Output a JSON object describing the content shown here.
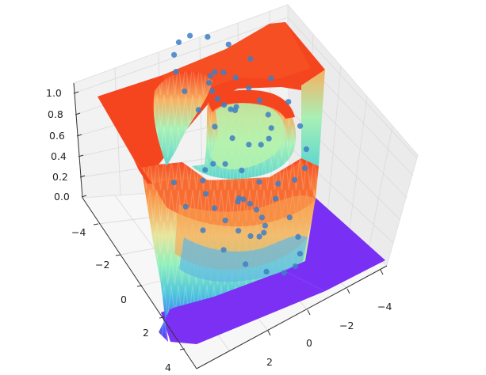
{
  "chart_data": {
    "type": "surface3d",
    "title": "",
    "xlabel": "",
    "ylabel": "",
    "zlabel": "",
    "x_ticks": [
      "−4",
      "−2",
      "0",
      "2",
      "4"
    ],
    "y_ticks": [
      "−4",
      "−2",
      "0",
      "2"
    ],
    "z_ticks": [
      "0.0",
      "0.2",
      "0.4",
      "0.6",
      "0.8",
      "1.0"
    ],
    "xlim": [
      -5,
      5
    ],
    "ylim": [
      -5,
      5
    ],
    "zlim": [
      0,
      1
    ],
    "colormap": "rainbow",
    "colors": {
      "high": "#f5451f",
      "upper": "#f98b40",
      "mid_high": "#f2c873",
      "mid": "#a8f0b6",
      "mid_low": "#5fd7cf",
      "low_mid": "#3a95ea",
      "low": "#7a2ff5",
      "points": "#3d7fc4"
    },
    "surface": {
      "description_level": "high (~1.0) outside the spiral band, low (~0) in the lower-right flat region",
      "high_value": 1.0,
      "low_value": 0.0
    },
    "scatter_points": [
      {
        "x": 0.0,
        "y": 0.0,
        "z": 1.0
      },
      {
        "x": 0.3,
        "y": 0.2,
        "z": 1.0
      },
      {
        "x": 0.6,
        "y": 0.1,
        "z": 1.0
      },
      {
        "x": 0.9,
        "y": -0.2,
        "z": 1.0
      },
      {
        "x": 1.1,
        "y": -0.6,
        "z": 1.0
      },
      {
        "x": 1.1,
        "y": -1.1,
        "z": 1.0
      },
      {
        "x": 0.9,
        "y": -1.6,
        "z": 1.0
      },
      {
        "x": 0.4,
        "y": -2.0,
        "z": 1.0
      },
      {
        "x": -0.2,
        "y": -2.2,
        "z": 1.0
      },
      {
        "x": -0.9,
        "y": -2.1,
        "z": 1.0
      },
      {
        "x": -1.6,
        "y": -1.7,
        "z": 1.0
      },
      {
        "x": -2.1,
        "y": -1.0,
        "z": 1.0
      },
      {
        "x": -2.3,
        "y": -0.2,
        "z": 1.0
      },
      {
        "x": -2.2,
        "y": 0.7,
        "z": 1.0
      },
      {
        "x": -1.7,
        "y": 1.5,
        "z": 1.0
      },
      {
        "x": -0.9,
        "y": 2.1,
        "z": 1.0
      },
      {
        "x": 0.1,
        "y": 2.4,
        "z": 1.0
      },
      {
        "x": 1.1,
        "y": 2.3,
        "z": 1.0
      },
      {
        "x": 2.1,
        "y": 1.8,
        "z": 1.0
      },
      {
        "x": 2.9,
        "y": 1.0,
        "z": 1.0
      },
      {
        "x": 3.3,
        "y": -0.1,
        "z": 1.0
      },
      {
        "x": 3.4,
        "y": -1.3,
        "z": 1.0
      },
      {
        "x": 3.0,
        "y": -2.5,
        "z": 1.0
      },
      {
        "x": 2.2,
        "y": -3.5,
        "z": 1.0
      },
      {
        "x": 1.1,
        "y": -4.2,
        "z": 1.0
      },
      {
        "x": -0.2,
        "y": -4.5,
        "z": 1.0
      },
      {
        "x": -1.6,
        "y": -4.3,
        "z": 1.0
      },
      {
        "x": -2.9,
        "y": -3.7,
        "z": 1.0
      },
      {
        "x": -3.9,
        "y": -2.7,
        "z": 1.0
      },
      {
        "x": -4.5,
        "y": -1.4,
        "z": 1.0
      },
      {
        "x": -4.6,
        "y": 0.1,
        "z": 1.0
      },
      {
        "x": -4.2,
        "y": 1.6,
        "z": 1.0
      },
      {
        "x": -3.4,
        "y": 3.0,
        "z": 1.0
      },
      {
        "x": -2.2,
        "y": 4.1,
        "z": 1.0
      },
      {
        "x": -0.7,
        "y": 4.7,
        "z": 1.0
      },
      {
        "x": 0.9,
        "y": 4.8,
        "z": 1.0
      },
      {
        "x": 0.0,
        "y": 0.0,
        "z": 0.0
      },
      {
        "x": -0.3,
        "y": -0.2,
        "z": 0.0
      },
      {
        "x": -0.6,
        "y": -0.1,
        "z": 0.0
      },
      {
        "x": -0.9,
        "y": 0.2,
        "z": 0.0
      },
      {
        "x": -1.1,
        "y": 0.6,
        "z": 0.0
      },
      {
        "x": -1.1,
        "y": 1.1,
        "z": 0.0
      },
      {
        "x": -0.9,
        "y": 1.6,
        "z": 0.0
      },
      {
        "x": -0.4,
        "y": 2.0,
        "z": 0.0
      },
      {
        "x": 0.2,
        "y": 2.2,
        "z": 0.0
      },
      {
        "x": 0.9,
        "y": 2.1,
        "z": 0.0
      },
      {
        "x": 1.6,
        "y": 1.7,
        "z": 0.0
      },
      {
        "x": 2.1,
        "y": 1.0,
        "z": 0.0
      },
      {
        "x": 2.3,
        "y": 0.2,
        "z": 0.0
      },
      {
        "x": 2.2,
        "y": -0.7,
        "z": 0.0
      },
      {
        "x": 1.7,
        "y": -1.5,
        "z": 0.0
      },
      {
        "x": 0.9,
        "y": -2.1,
        "z": 0.0
      },
      {
        "x": -0.1,
        "y": -2.4,
        "z": 0.0
      },
      {
        "x": -1.1,
        "y": -2.3,
        "z": 0.0
      },
      {
        "x": -2.1,
        "y": -1.8,
        "z": 0.0
      },
      {
        "x": -2.9,
        "y": -1.0,
        "z": 0.0
      },
      {
        "x": -3.3,
        "y": 0.1,
        "z": 0.0
      },
      {
        "x": -3.4,
        "y": 1.3,
        "z": 0.0
      },
      {
        "x": -3.0,
        "y": 2.5,
        "z": 0.0
      },
      {
        "x": -2.2,
        "y": 3.5,
        "z": 0.0
      },
      {
        "x": -1.1,
        "y": 4.2,
        "z": 0.0
      },
      {
        "x": 0.2,
        "y": 4.5,
        "z": 0.0
      },
      {
        "x": 1.6,
        "y": 4.3,
        "z": 0.0
      },
      {
        "x": 2.9,
        "y": 3.7,
        "z": 0.0
      },
      {
        "x": 3.9,
        "y": 2.7,
        "z": 0.0
      },
      {
        "x": 4.5,
        "y": 1.4,
        "z": 0.0
      },
      {
        "x": 4.6,
        "y": -0.1,
        "z": 0.0
      },
      {
        "x": 4.2,
        "y": -1.6,
        "z": 0.0
      }
    ]
  }
}
